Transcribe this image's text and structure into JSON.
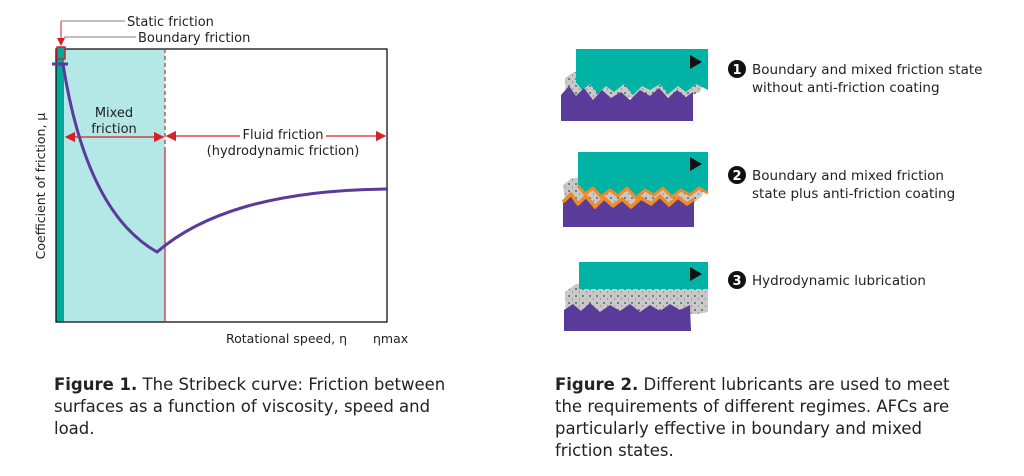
{
  "figure1": {
    "y_axis_label": "Coefficient of friction, μ",
    "x_axis_label": "Rotational speed, η",
    "x_max_label": "ηmax",
    "label_static": "Static friction",
    "label_boundary": "Boundary friction",
    "label_mixed_line1": "Mixed",
    "label_mixed_line2": "friction",
    "label_fluid_line1": "Fluid friction",
    "label_fluid_line2": "(hydrodynamic friction)",
    "caption_bold": "Figure 1.",
    "caption_text": " The Stribeck curve: Friction between surfaces as a function of viscosity, speed and load."
  },
  "figure2": {
    "items": [
      {
        "number": "1",
        "line1": "Boundary and mixed friction state",
        "line2": "without anti-friction coating"
      },
      {
        "number": "2",
        "line1": "Boundary and mixed friction",
        "line2": "state plus anti-friction coating"
      },
      {
        "number": "3",
        "line1": "Hydrodynamic lubrication",
        "line2": ""
      }
    ],
    "caption_bold": "Figure 2.",
    "caption_text": " Different lubricants are used to meet the requirements of different regimes. AFCs are particularly effective in boundary and mixed friction states."
  },
  "colors": {
    "teal": "#00b3a4",
    "mixed_fill": "#b3e8e6",
    "curve": "#5b3a9c",
    "purple_block": "#5a3b9a",
    "red": "#d6202a",
    "coating": "#f08a24"
  }
}
